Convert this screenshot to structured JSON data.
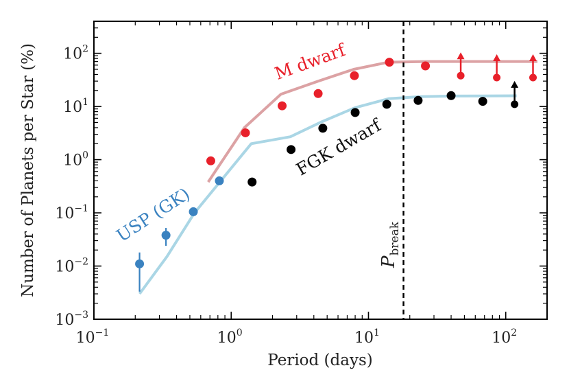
{
  "chart_data": {
    "type": "scatter",
    "xlabel": "Period (days)",
    "ylabel": "Number of Planets per Star (%)",
    "xscale": "log",
    "yscale": "log",
    "xlim": [
      0.1,
      200
    ],
    "ylim": [
      0.001,
      400
    ],
    "x_ticks": [
      {
        "base": "10",
        "exp": "−1"
      },
      {
        "base": "10",
        "exp": "0"
      },
      {
        "base": "10",
        "exp": "1"
      },
      {
        "base": "10",
        "exp": "2"
      }
    ],
    "y_ticks": [
      {
        "base": "10",
        "exp": "−3"
      },
      {
        "base": "10",
        "exp": "−2"
      },
      {
        "base": "10",
        "exp": "−1"
      },
      {
        "base": "10",
        "exp": "0"
      },
      {
        "base": "10",
        "exp": "1"
      },
      {
        "base": "10",
        "exp": "2"
      }
    ],
    "series": [
      {
        "name": "M dwarf",
        "label": "M dwarf",
        "color": "#e8202a",
        "points": [
          {
            "x": 0.71,
            "y": 0.95
          },
          {
            "x": 1.27,
            "y": 3.2
          },
          {
            "x": 2.35,
            "y": 10.3
          },
          {
            "x": 4.3,
            "y": 17.5
          },
          {
            "x": 7.9,
            "y": 38
          },
          {
            "x": 14.2,
            "y": 68
          },
          {
            "x": 26,
            "y": 58
          },
          {
            "x": 47,
            "y": 38,
            "lower_limit": true
          },
          {
            "x": 86,
            "y": 35,
            "lower_limit": true
          },
          {
            "x": 158,
            "y": 35,
            "lower_limit": true
          }
        ]
      },
      {
        "name": "FGK dwarf",
        "label": "FGK dwarf",
        "color": "#000000",
        "points": [
          {
            "x": 1.42,
            "y": 0.38
          },
          {
            "x": 2.73,
            "y": 1.55
          },
          {
            "x": 4.65,
            "y": 3.9
          },
          {
            "x": 8.0,
            "y": 7.7
          },
          {
            "x": 13.6,
            "y": 11
          },
          {
            "x": 23,
            "y": 13
          },
          {
            "x": 40,
            "y": 16
          },
          {
            "x": 68,
            "y": 12.5,
            "err": [
              11,
              15
            ]
          },
          {
            "x": 116,
            "y": 11,
            "lower_limit": true
          }
        ]
      },
      {
        "name": "USP (GK)",
        "label": "USP (GK)",
        "color": "#3a82c0",
        "points": [
          {
            "x": 0.215,
            "y": 0.011,
            "err": [
              0.0033,
              0.018
            ]
          },
          {
            "x": 0.335,
            "y": 0.038,
            "err": [
              0.024,
              0.052
            ]
          },
          {
            "x": 0.53,
            "y": 0.105,
            "err": [
              0.09,
              0.12
            ]
          },
          {
            "x": 0.82,
            "y": 0.4,
            "err": [
              0.34,
              0.47
            ]
          }
        ]
      }
    ],
    "model_lines": [
      {
        "name": "M dwarf model",
        "color": "#dca2a4",
        "points": [
          [
            0.68,
            0.38
          ],
          [
            1.25,
            4.0
          ],
          [
            2.3,
            17
          ],
          [
            4.3,
            30
          ],
          [
            7.8,
            50
          ],
          [
            14,
            68
          ],
          [
            26,
            70
          ],
          [
            47,
            70
          ],
          [
            86,
            70
          ],
          [
            170,
            70
          ]
        ]
      },
      {
        "name": "FGK dwarf model",
        "color": "#aad6e5",
        "points": [
          [
            0.215,
            0.003
          ],
          [
            0.34,
            0.015
          ],
          [
            0.54,
            0.1
          ],
          [
            0.84,
            0.4
          ],
          [
            1.4,
            2.0
          ],
          [
            2.7,
            2.7
          ],
          [
            4.6,
            5.2
          ],
          [
            8.0,
            9.5
          ],
          [
            14,
            14
          ],
          [
            24,
            15.3
          ],
          [
            41,
            15.7
          ],
          [
            70,
            15.8
          ],
          [
            120,
            15.9
          ]
        ]
      }
    ],
    "annotations": {
      "pbreak": {
        "x": 18,
        "symbol": "P",
        "subscript": "break"
      }
    }
  }
}
